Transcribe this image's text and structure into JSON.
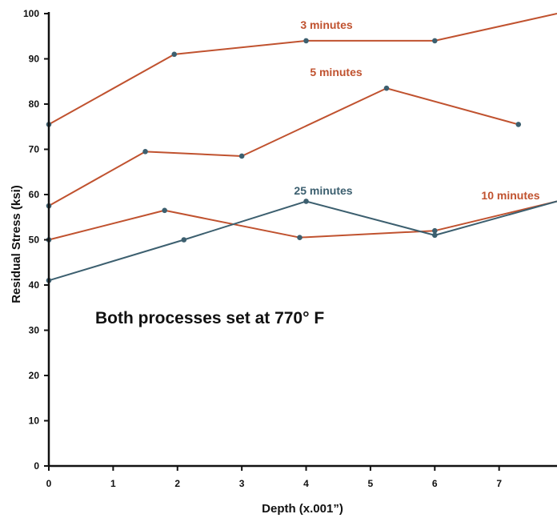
{
  "chart_data": {
    "type": "line",
    "title": "",
    "xlabel": "Depth (x.001”)",
    "ylabel": "Residual Stress (ksi)",
    "xlim": [
      0,
      7.9
    ],
    "ylim": [
      0,
      100
    ],
    "x_ticks": [
      "0",
      "1",
      "2",
      "3",
      "4",
      "5",
      "6",
      "7"
    ],
    "y_ticks": [
      "0",
      "10",
      "20",
      "30",
      "40",
      "50",
      "60",
      "70",
      "80",
      "90",
      "100"
    ],
    "grid": false,
    "legend": "none",
    "annotation": "Both processes set at 770° F",
    "series": [
      {
        "name": "3 minutes",
        "color": "#c0522f",
        "points": [
          [
            0,
            75.5
          ],
          [
            1.95,
            91
          ],
          [
            4,
            94
          ],
          [
            6,
            94
          ],
          [
            7.9,
            100
          ]
        ]
      },
      {
        "name": "5 minutes",
        "color": "#c0522f",
        "points": [
          [
            0,
            57.5
          ],
          [
            1.5,
            69.5
          ],
          [
            3,
            68.5
          ],
          [
            5.25,
            83.5
          ],
          [
            7.3,
            75.5
          ]
        ]
      },
      {
        "name": "10 minutes",
        "color": "#c0522f",
        "points": [
          [
            0,
            50
          ],
          [
            1.8,
            56.5
          ],
          [
            3.9,
            50.5
          ],
          [
            6,
            52
          ],
          [
            7.9,
            58.5
          ]
        ]
      },
      {
        "name": "25 minutes",
        "color": "#3c5f6f",
        "points": [
          [
            0,
            41
          ],
          [
            2.1,
            50
          ],
          [
            4,
            58.5
          ],
          [
            6,
            51
          ],
          [
            7.9,
            58.5
          ]
        ]
      }
    ]
  }
}
